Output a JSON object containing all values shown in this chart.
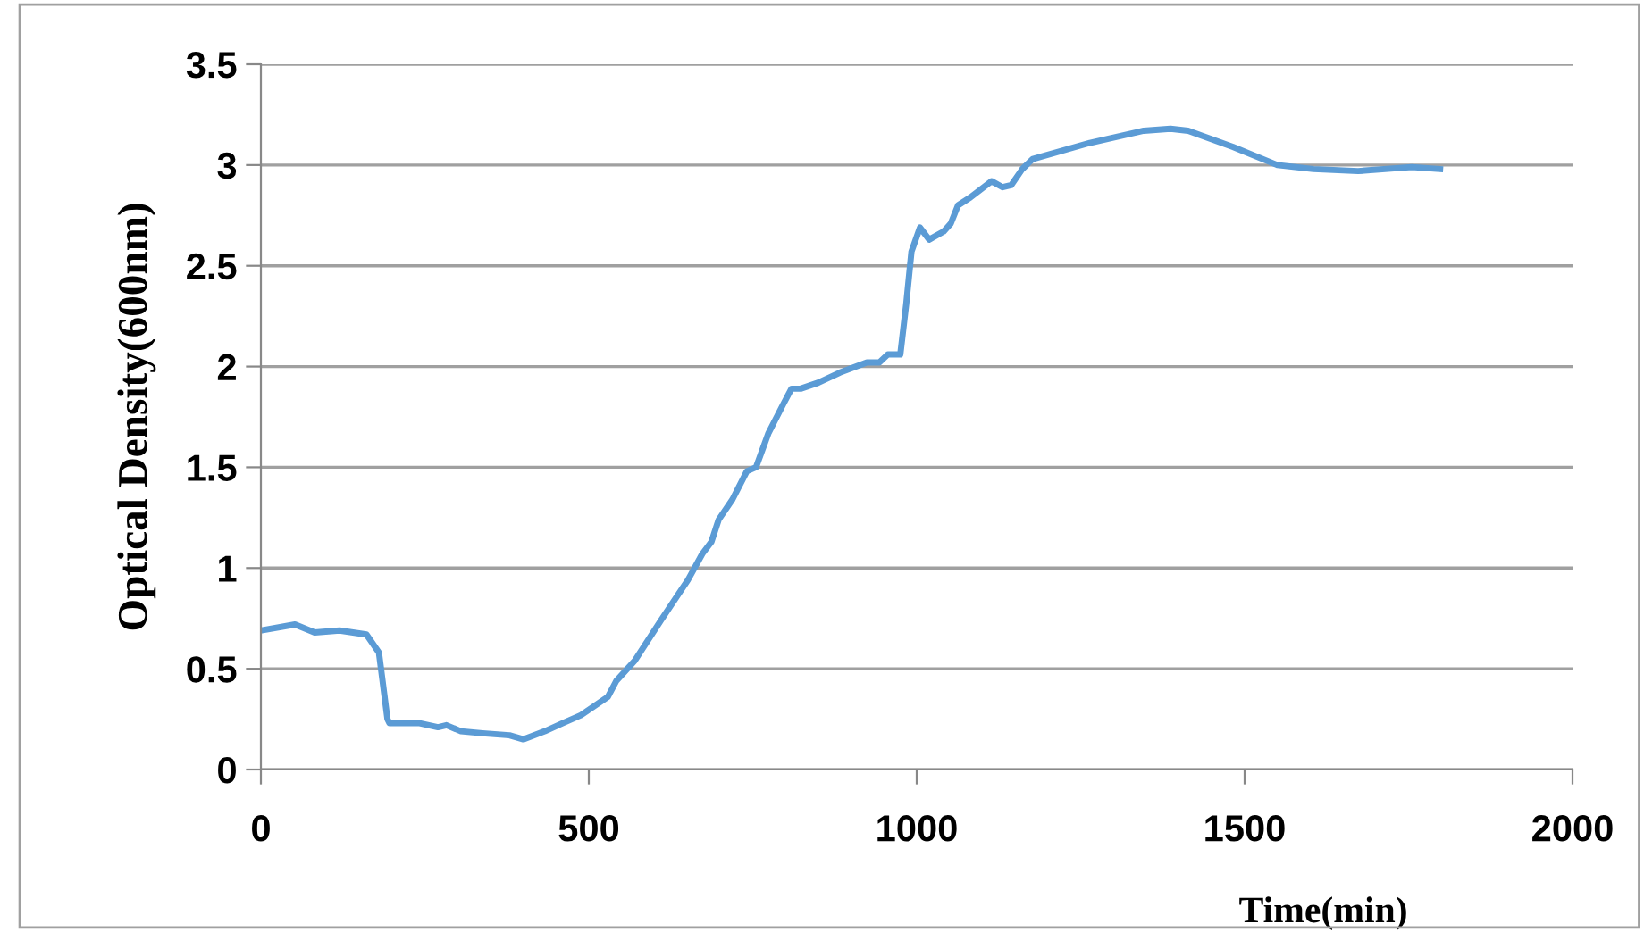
{
  "chart_data": {
    "type": "line",
    "xlabel": "Time(min)",
    "ylabel": "Optical Density(600nm)",
    "xlim": [
      0,
      2000
    ],
    "ylim": [
      0,
      3.5
    ],
    "xticks": [
      0,
      500,
      1000,
      1500,
      2000
    ],
    "yticks": [
      0,
      0.5,
      1,
      1.5,
      2,
      2.5,
      3,
      3.5
    ],
    "grid": "y",
    "legend": false,
    "marker": "none",
    "line_style": "solid",
    "series": [
      {
        "color": "#5b9bd5",
        "x": [
          0,
          52,
          82,
          120,
          161,
          180,
          193,
          196,
          242,
          270,
          283,
          305,
          338,
          379,
          400,
          433,
          460,
          488,
          529,
          542,
          570,
          610,
          651,
          673,
          687,
          698,
          719,
          741,
          755,
          774,
          796,
          809,
          823,
          850,
          883,
          924,
          943,
          956,
          975,
          984,
          992,
          1005,
          1019,
          1041,
          1052,
          1063,
          1082,
          1114,
          1131,
          1144,
          1161,
          1177,
          1264,
          1346,
          1387,
          1414,
          1482,
          1550,
          1605,
          1673,
          1755,
          1798
        ],
        "values": [
          0.69,
          0.72,
          0.68,
          0.69,
          0.67,
          0.58,
          0.25,
          0.23,
          0.23,
          0.21,
          0.22,
          0.19,
          0.18,
          0.17,
          0.15,
          0.19,
          0.23,
          0.27,
          0.36,
          0.44,
          0.54,
          0.74,
          0.94,
          1.07,
          1.13,
          1.24,
          1.34,
          1.48,
          1.5,
          1.67,
          1.81,
          1.89,
          1.89,
          1.92,
          1.97,
          2.02,
          2.02,
          2.06,
          2.06,
          2.31,
          2.57,
          2.69,
          2.63,
          2.67,
          2.71,
          2.8,
          2.84,
          2.92,
          2.89,
          2.9,
          2.98,
          3.03,
          3.11,
          3.17,
          3.18,
          3.17,
          3.09,
          3.0,
          2.98,
          2.97,
          2.99,
          2.98
        ]
      }
    ]
  }
}
